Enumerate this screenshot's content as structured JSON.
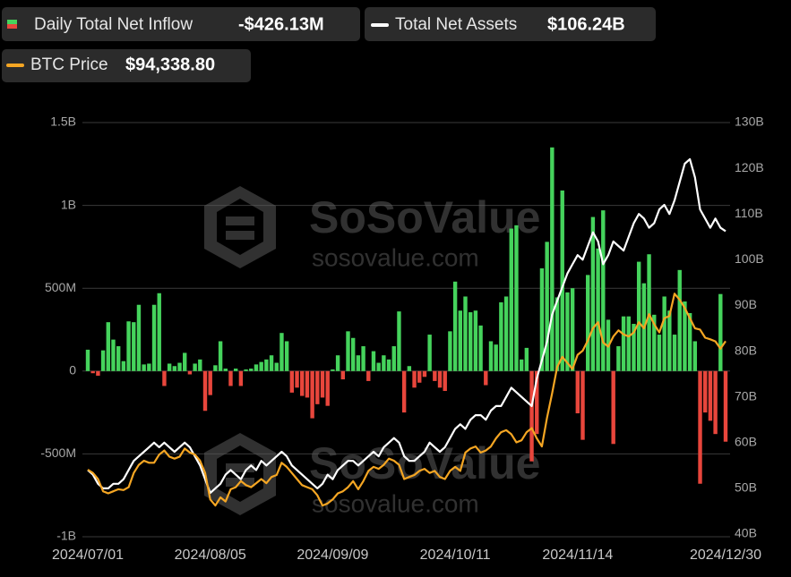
{
  "chart_data": {
    "type": "bar-line",
    "watermark": [
      "SoSoValue",
      "sosovalue.com"
    ],
    "categories": [
      "2024/07/01",
      null,
      null,
      null,
      null,
      null,
      null,
      null,
      null,
      null,
      null,
      null,
      null,
      null,
      null,
      null,
      null,
      null,
      null,
      null,
      null,
      null,
      null,
      null,
      "2024/08/05",
      null,
      null,
      null,
      null,
      null,
      null,
      null,
      null,
      null,
      null,
      null,
      null,
      null,
      null,
      null,
      null,
      null,
      null,
      null,
      null,
      null,
      null,
      null,
      "2024/09/09",
      null,
      null,
      null,
      null,
      null,
      null,
      null,
      null,
      null,
      null,
      null,
      null,
      null,
      null,
      null,
      null,
      null,
      null,
      null,
      null,
      null,
      null,
      null,
      "2024/10/11",
      null,
      null,
      null,
      null,
      null,
      null,
      null,
      null,
      null,
      null,
      null,
      null,
      null,
      null,
      null,
      null,
      null,
      null,
      null,
      null,
      null,
      null,
      null,
      "2024/11/14",
      null,
      null,
      null,
      null,
      null,
      null,
      null,
      null,
      null,
      null,
      null,
      null,
      null,
      null,
      null,
      null,
      null,
      null,
      null,
      null,
      null,
      null,
      null,
      null,
      null,
      null,
      null,
      null,
      "2024/12/30"
    ],
    "series": [
      {
        "name": "Daily Total Net Inflow",
        "latest_label": "-$426.13M",
        "type": "bar",
        "axis": "y",
        "color": "#45d35c",
        "negative_color": "#e8463c",
        "values": [
          129,
          -13,
          -28,
          125,
          295,
          190,
          150,
          60,
          300,
          295,
          400,
          40,
          45,
          400,
          470,
          -90,
          45,
          30,
          50,
          110,
          -20,
          45,
          70,
          -240,
          -145,
          35,
          180,
          15,
          -90,
          15,
          -90,
          10,
          15,
          40,
          55,
          70,
          95,
          50,
          230,
          180,
          -130,
          -100,
          -150,
          -160,
          -285,
          -200,
          -160,
          -210,
          10,
          95,
          -50,
          240,
          200,
          95,
          150,
          -60,
          120,
          50,
          95,
          70,
          150,
          360,
          -250,
          30,
          -100,
          -70,
          -35,
          220,
          -60,
          -100,
          -120,
          240,
          540,
          365,
          450,
          355,
          365,
          275,
          -85,
          180,
          160,
          415,
          450,
          860,
          880,
          70,
          140,
          -545,
          -380,
          620,
          780,
          1350,
          445,
          1090,
          475,
          500,
          -255,
          -415,
          580,
          930,
          740,
          970,
          310,
          -440,
          150,
          330,
          330,
          285,
          660,
          530,
          705,
          340,
          220,
          450,
          365,
          220,
          610,
          420,
          350,
          180,
          -680,
          -250,
          -300,
          -380,
          465,
          -426.13
        ]
      },
      {
        "name": "Total Net Assets",
        "latest_label": "$106.24B",
        "type": "line",
        "axis": "y2",
        "color": "#ffffff",
        "values": [
          54,
          53,
          51,
          50,
          50,
          51,
          51,
          52,
          54,
          56,
          57,
          58,
          59,
          60,
          59,
          60,
          59,
          58,
          59,
          60,
          59,
          57,
          55,
          52,
          49,
          50,
          51,
          53,
          54,
          53,
          52,
          54,
          55,
          54,
          56,
          55,
          56,
          57,
          58,
          57,
          55,
          54,
          53,
          52,
          51,
          50,
          51,
          53,
          52,
          54,
          55,
          56,
          56,
          55,
          56,
          57,
          58,
          57,
          59,
          60,
          61,
          60,
          57,
          56,
          56,
          57,
          58,
          60,
          59,
          58,
          59,
          61,
          63,
          64,
          63,
          65,
          66,
          66,
          65,
          67,
          68,
          68,
          70,
          72,
          71,
          70,
          69,
          68,
          74,
          78,
          82,
          88,
          91,
          94,
          97,
          99,
          101,
          100,
          103,
          106,
          104,
          99,
          101,
          104,
          103,
          102,
          105,
          108,
          110,
          109,
          107,
          108,
          111,
          112,
          110,
          113,
          117,
          121,
          122,
          118,
          111,
          109,
          107,
          109,
          107,
          106.24
        ]
      },
      {
        "name": "BTC Price",
        "latest_label": "$94,338.80",
        "type": "line",
        "axis": "y3",
        "color": "#f5a623",
        "values": [
          62800,
          62000,
          60500,
          57500,
          57000,
          57500,
          58000,
          57800,
          58500,
          62000,
          64000,
          65000,
          64500,
          64500,
          66500,
          67500,
          66000,
          65500,
          66000,
          68000,
          67000,
          66500,
          65000,
          62000,
          55500,
          54000,
          56000,
          55000,
          58000,
          58500,
          60000,
          59000,
          58500,
          59500,
          60500,
          59500,
          61000,
          61500,
          64500,
          63500,
          62000,
          60500,
          59000,
          58500,
          58000,
          56500,
          54000,
          54500,
          55500,
          57000,
          57500,
          58500,
          60000,
          58000,
          60000,
          62500,
          63500,
          63000,
          64000,
          65500,
          65000,
          64000,
          60500,
          61000,
          61500,
          62500,
          63000,
          62000,
          62500,
          61000,
          60500,
          62500,
          63500,
          62500,
          67000,
          68000,
          68500,
          67000,
          67500,
          68500,
          70500,
          72000,
          72500,
          71500,
          69500,
          70000,
          72000,
          73000,
          70500,
          68500,
          75500,
          81500,
          88000,
          90500,
          89000,
          87500,
          91000,
          92000,
          94500,
          97500,
          99000,
          94000,
          93000,
          95500,
          97000,
          96000,
          95500,
          96500,
          99000,
          97500,
          101000,
          98500,
          96500,
          100000,
          100500,
          106000,
          104500,
          102500,
          100000,
          97500,
          97200,
          95200,
          94800,
          94300,
          92500,
          94338.8
        ]
      }
    ],
    "ylim": [
      -1000,
      1500
    ],
    "yticks": [
      {
        "value": -1000,
        "label": "-1B"
      },
      {
        "value": -500,
        "label": "-500M"
      },
      0,
      {
        "value": 500,
        "label": "500M"
      },
      {
        "value": 1000,
        "label": "1B"
      },
      {
        "value": 1500,
        "label": "1.5B"
      }
    ],
    "y2lim": [
      40,
      130
    ],
    "y2ticks": [
      {
        "value": 40,
        "label": "40B"
      },
      {
        "value": 50,
        "label": "50B"
      },
      {
        "value": 60,
        "label": "60B"
      },
      {
        "value": 70,
        "label": "70B"
      },
      {
        "value": 80,
        "label": "80B"
      },
      {
        "value": 90,
        "label": "90B"
      },
      {
        "value": 100,
        "label": "100B"
      },
      {
        "value": 110,
        "label": "110B"
      },
      {
        "value": 120,
        "label": "120B"
      },
      {
        "value": 130,
        "label": "130B"
      }
    ],
    "y3lim": [
      47000,
      148000
    ],
    "grid": true
  }
}
